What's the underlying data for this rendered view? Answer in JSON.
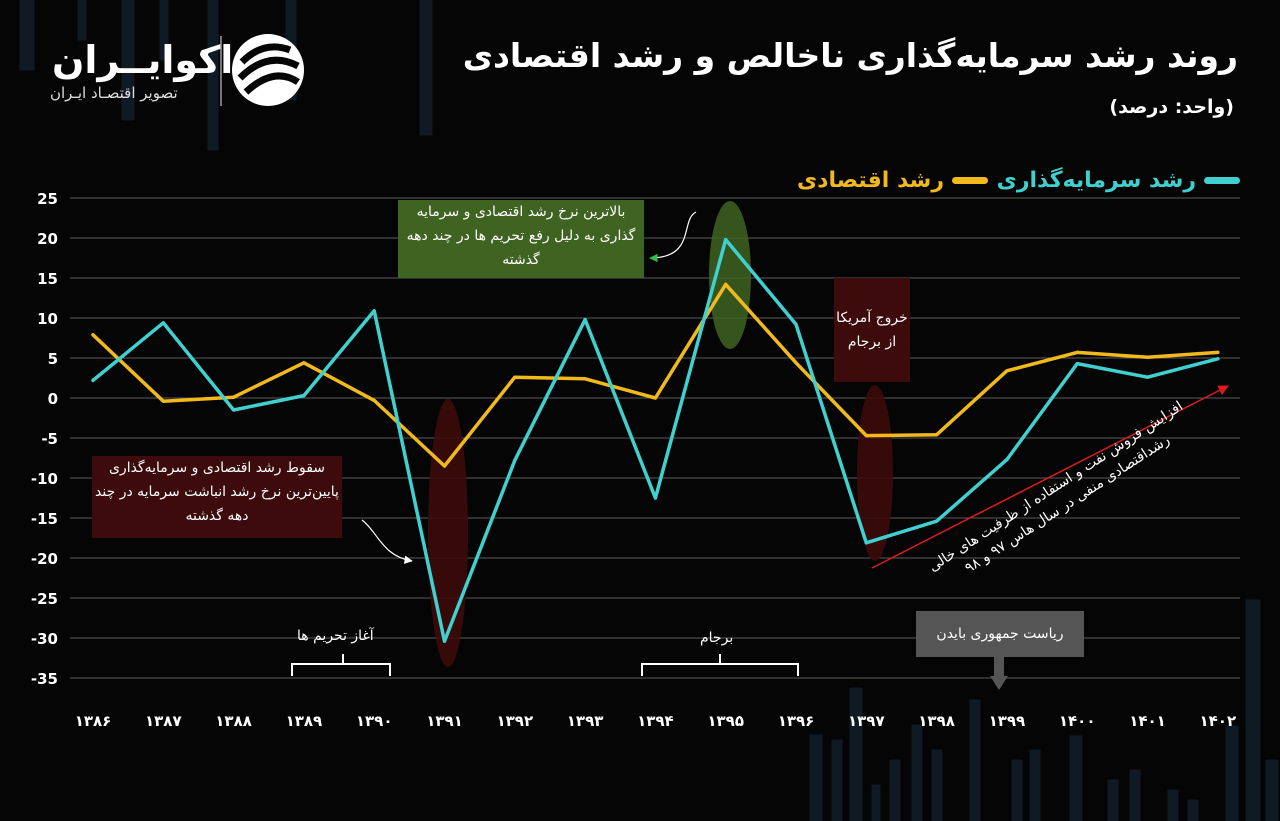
{
  "header": {
    "title": "روند رشد سرمایه‌گذاری ناخالص و رشد اقتصادی",
    "unit": "(واحد: درصد)"
  },
  "brand": {
    "name": "اکوایــران",
    "tagline": "تصویر اقتصـاد ایـران"
  },
  "colors": {
    "investment": "#3fd0cf",
    "gdp": "#f2b91d",
    "background": "#050505",
    "grid": "#5a5a5a",
    "annotation_green": "#3f6422",
    "annotation_red": "#3d0b0b",
    "arrow_red": "#e01b1b"
  },
  "chart_data": {
    "type": "line",
    "categories": [
      "۱۳۸۶",
      "۱۳۸۷",
      "۱۳۸۸",
      "۱۳۸۹",
      "۱۳۹۰",
      "۱۳۹۱",
      "۱۳۹۲",
      "۱۳۹۳",
      "۱۳۹۴",
      "۱۳۹۵",
      "۱۳۹۶",
      "۱۳۹۷",
      "۱۳۹۸",
      "۱۳۹۹",
      "۱۴۰۰",
      "۱۴۰۱",
      "۱۴۰۲"
    ],
    "series": [
      {
        "name": "رشد سرمایه‌گذاری",
        "color": "#3fd0cf",
        "values": [
          2.2,
          9.4,
          -1.5,
          0.3,
          10.9,
          -30.4,
          -7.8,
          9.8,
          -12.5,
          19.8,
          9.2,
          -18.1,
          -15.4,
          -7.7,
          4.3,
          2.6,
          4.9
        ]
      },
      {
        "name": "رشد اقتصادی",
        "color": "#f2b91d",
        "values": [
          7.9,
          -0.4,
          0.1,
          4.4,
          -0.3,
          -8.5,
          2.6,
          2.4,
          0.0,
          14.2,
          4.4,
          -4.7,
          -4.6,
          3.4,
          5.7,
          5.1,
          5.7
        ]
      }
    ],
    "ylim": [
      -35,
      25
    ],
    "yticks": [
      25,
      20,
      15,
      10,
      5,
      0,
      -5,
      -10,
      -15,
      -20,
      -25,
      -30,
      -35
    ],
    "ytick_labels": [
      "25",
      "20",
      "15",
      "10",
      "5",
      "0",
      "-5",
      "-10",
      "-15",
      "-20",
      "-25",
      "-30",
      "-35"
    ],
    "grid": true,
    "legend_position": "top-right",
    "title": "روند رشد سرمایه‌گذاری ناخالص و رشد اقتصادی",
    "xlabel": "",
    "ylabel": ""
  },
  "annotations": {
    "peak_note": "بالاترین نرخ رشد اقتصادی و سرمایه گذاری به دلیل رفع تحریم ها در چند دهه گذشته",
    "crash_note": "سقوط رشد اقتصادی و سرمایه‌گذاری پایین‌ترین نرخ رشد انباشت سرمایه در چند دهه گذشته",
    "us_exit_note": "خروج آمریکا از برجام",
    "sanctions_start": "آغاز تحریم ها",
    "jcpoa": "برجام",
    "biden": "ریاست جمهوری بایدن",
    "recovery_note": "افزایش فروش نفت و استفاده از ظرفیت های خالی رشداقتصادی منفی در سال هاس ۹۷ و ۹۸"
  }
}
